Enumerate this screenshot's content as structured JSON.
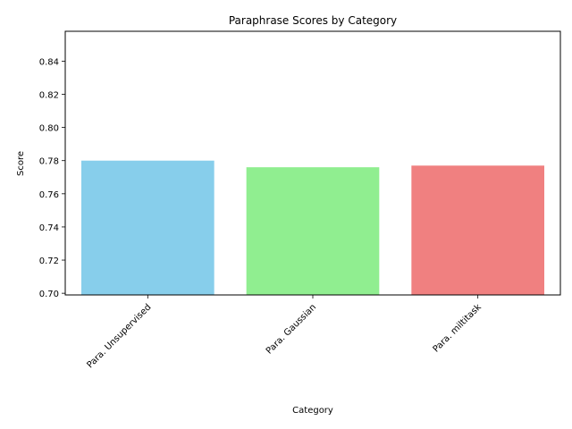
{
  "chart_data": {
    "type": "bar",
    "title": "Paraphrase Scores by Category",
    "xlabel": "Category",
    "ylabel": "Score",
    "categories": [
      "Para. Unsupervised",
      "Para. Gaussian",
      "Para. miltitask"
    ],
    "values": [
      0.78,
      0.776,
      0.777
    ],
    "colors": [
      "#87CEEB",
      "#90EE90",
      "#F08080"
    ],
    "ylim": [
      0.699,
      0.858
    ],
    "yticks": [
      0.7,
      0.72,
      0.74,
      0.76,
      0.78,
      0.8,
      0.82,
      0.84
    ],
    "ytick_labels": [
      "0.70",
      "0.72",
      "0.74",
      "0.76",
      "0.78",
      "0.80",
      "0.82",
      "0.84"
    ],
    "grid": false
  }
}
